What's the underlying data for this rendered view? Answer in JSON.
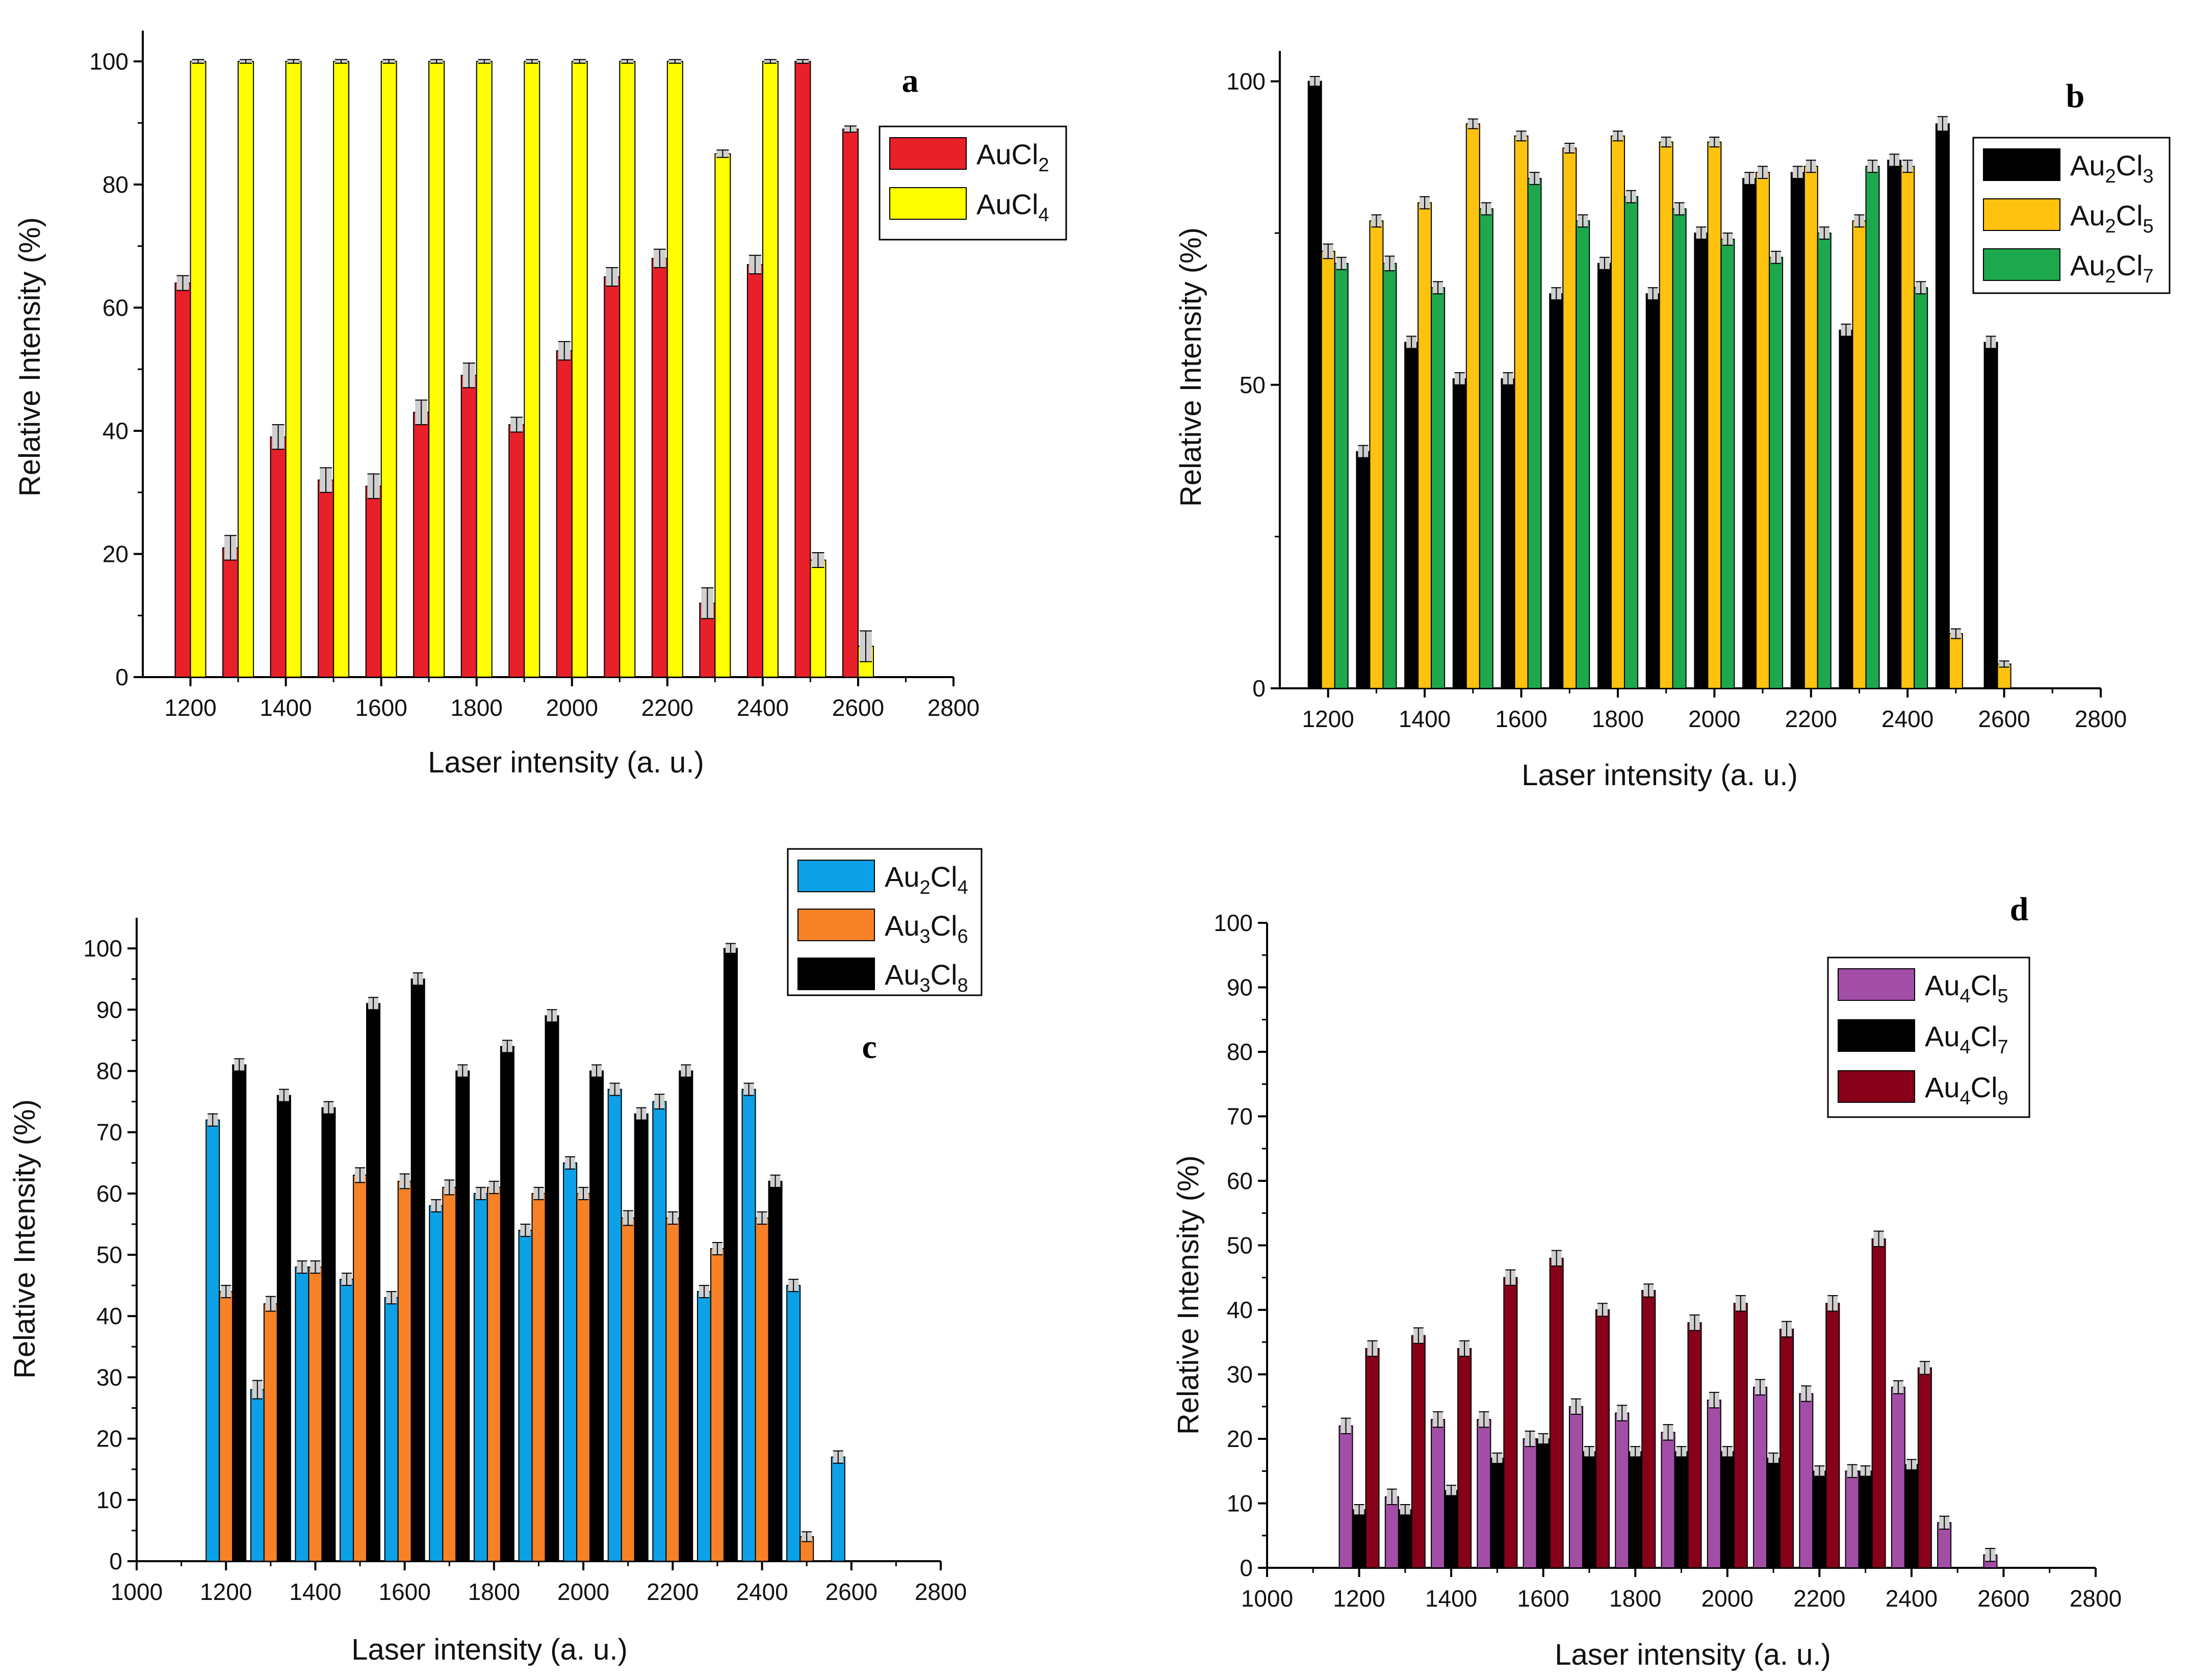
{
  "figure": {
    "panels": [
      {
        "letter": "a",
        "xlabel": "Laser intensity (a. u.)",
        "ylabel": "Relative Intensity (%)",
        "legend": [
          "AuCl2",
          "AuCl4"
        ]
      },
      {
        "letter": "b",
        "xlabel": "Laser intensity (a. u.)",
        "ylabel": "Relative Intensity (%)",
        "legend": [
          "Au2Cl3",
          "Au2Cl5",
          "Au2Cl7"
        ]
      },
      {
        "letter": "c",
        "xlabel": "Laser intensity (a. u.)",
        "ylabel": "Relative Intensity (%)",
        "legend": [
          "Au2Cl4",
          "Au3Cl6",
          "Au3Cl8"
        ]
      },
      {
        "letter": "d",
        "xlabel": "Laser intensity (a. u.)",
        "ylabel": "Relative Intensity (%)",
        "legend": [
          "Au4Cl5",
          "Au4Cl7",
          "Au4Cl9"
        ]
      }
    ]
  },
  "chart_data": [
    {
      "panel": "a",
      "type": "bar",
      "title": "",
      "xlabel": "Laser intensity (a. u.)",
      "ylabel": "Relative Intensity (%)",
      "xlim": [
        1100,
        2800
      ],
      "ylim": [
        0,
        105
      ],
      "xticks": [
        1200,
        1400,
        1600,
        1800,
        2000,
        2200,
        2400,
        2600,
        2800
      ],
      "yticks": [
        0,
        20,
        40,
        60,
        80,
        100
      ],
      "legend_position": "top-right",
      "categories": [
        1200,
        1300,
        1400,
        1500,
        1600,
        1700,
        1800,
        1900,
        2000,
        2100,
        2200,
        2300,
        2400,
        2500,
        2600
      ],
      "series": [
        {
          "name": "AuCl2",
          "color": "#e8202a",
          "values": [
            64,
            21,
            39,
            32,
            31,
            43,
            49,
            41,
            53,
            65,
            68,
            12,
            67,
            100,
            89
          ],
          "errors": [
            1.2,
            2,
            2,
            2,
            2,
            2,
            2,
            1.2,
            1.5,
            1.5,
            1.5,
            2.5,
            1.5,
            0.3,
            0.5
          ]
        },
        {
          "name": "AuCl4",
          "color": "#ffff00",
          "values": [
            100,
            100,
            100,
            100,
            100,
            100,
            100,
            100,
            100,
            100,
            100,
            85,
            100,
            19,
            5
          ],
          "errors": [
            0.3,
            0.3,
            0.3,
            0.3,
            0.3,
            0.3,
            0.3,
            0.3,
            0.3,
            0.3,
            0.3,
            0.6,
            0.3,
            1.2,
            2.5
          ]
        }
      ]
    },
    {
      "panel": "b",
      "type": "bar",
      "title": "",
      "xlabel": "Laser intensity (a. u.)",
      "ylabel": "Relative Intensity (%)",
      "xlim": [
        1100,
        2800
      ],
      "ylim": [
        0,
        105
      ],
      "xticks": [
        1200,
        1400,
        1600,
        1800,
        2000,
        2200,
        2400,
        2600,
        2800
      ],
      "yticks": [
        0,
        50,
        100
      ],
      "legend_position": "top-right",
      "categories": [
        1200,
        1300,
        1400,
        1500,
        1600,
        1700,
        1800,
        1900,
        2000,
        2100,
        2200,
        2300,
        2400,
        2500,
        2600
      ],
      "series": [
        {
          "name": "Au2Cl3",
          "color": "#000000",
          "values": [
            100,
            39,
            57,
            51,
            51,
            65,
            70,
            65,
            75,
            84,
            85,
            59,
            87,
            93,
            57
          ],
          "errors": [
            0.8,
            1,
            1,
            1,
            1,
            1,
            1,
            1,
            1,
            1,
            1,
            1,
            1,
            1.2,
            1
          ]
        },
        {
          "name": "Au2Cl5",
          "color": "#ffc20e",
          "values": [
            72,
            77,
            80,
            93,
            91,
            89,
            91,
            90,
            90,
            85,
            86,
            77,
            86,
            9,
            4
          ],
          "errors": [
            1.2,
            1,
            1,
            0.8,
            0.8,
            0.8,
            0.8,
            0.8,
            0.8,
            1,
            1,
            1,
            1,
            0.8,
            0.5
          ]
        },
        {
          "name": "Au2Cl7",
          "color": "#1ea84e",
          "values": [
            70,
            70,
            66,
            79,
            84,
            77,
            81,
            79,
            74,
            71,
            75,
            86,
            66,
            null,
            null
          ],
          "errors": [
            1,
            1.2,
            1,
            1,
            1,
            1,
            1,
            1,
            1,
            1,
            1,
            1,
            1,
            null,
            null
          ]
        }
      ]
    },
    {
      "panel": "c",
      "type": "bar",
      "title": "",
      "xlabel": "Laser intensity (a. u.)",
      "ylabel": "Relative Intensity (%)",
      "xlim": [
        1000,
        2800
      ],
      "ylim": [
        0,
        105
      ],
      "xticks": [
        1000,
        1200,
        1400,
        1600,
        1800,
        2000,
        2200,
        2400,
        2600,
        2800
      ],
      "yticks": [
        0,
        10,
        20,
        30,
        40,
        50,
        60,
        70,
        80,
        90,
        100
      ],
      "legend_position": "top-right",
      "categories": [
        1200,
        1300,
        1400,
        1500,
        1600,
        1700,
        1800,
        1900,
        2000,
        2100,
        2200,
        2300,
        2400,
        2500,
        2600
      ],
      "series": [
        {
          "name": "Au2Cl4",
          "color": "#0ca0e6",
          "values": [
            72,
            28,
            48,
            46,
            43,
            58,
            60,
            54,
            65,
            77,
            75,
            44,
            77,
            45,
            17
          ],
          "errors": [
            1,
            1.5,
            1,
            1,
            1,
            1,
            1,
            1,
            1,
            1,
            1.2,
            1,
            1,
            1,
            1
          ]
        },
        {
          "name": "Au3Cl6",
          "color": "#f68127",
          "values": [
            44,
            42,
            48,
            63,
            62,
            61,
            61,
            60,
            60,
            56,
            56,
            51,
            56,
            4,
            null
          ],
          "errors": [
            1,
            1.2,
            1,
            1.2,
            1.2,
            1.2,
            1,
            1,
            1,
            1.2,
            1,
            1,
            1,
            0.8,
            null
          ]
        },
        {
          "name": "Au3Cl8",
          "color": "#000000",
          "values": [
            81,
            76,
            74,
            91,
            95,
            80,
            84,
            89,
            80,
            73,
            80,
            100,
            62,
            null,
            null
          ],
          "errors": [
            1,
            1,
            1,
            1,
            1,
            1,
            1,
            1,
            1,
            1,
            1,
            0.8,
            1,
            null,
            null
          ]
        }
      ]
    },
    {
      "panel": "d",
      "type": "bar",
      "title": "",
      "xlabel": "Laser intensity (a. u.)",
      "ylabel": "Relative Intensity (%)",
      "xlim": [
        1000,
        2800
      ],
      "ylim": [
        0,
        100
      ],
      "xticks": [
        1000,
        1200,
        1400,
        1600,
        1800,
        2000,
        2200,
        2400,
        2600,
        2800
      ],
      "yticks": [
        0,
        10,
        20,
        30,
        40,
        50,
        60,
        70,
        80,
        90,
        100
      ],
      "legend_position": "top-right",
      "categories": [
        1200,
        1300,
        1400,
        1500,
        1600,
        1700,
        1800,
        1900,
        2000,
        2100,
        2200,
        2300,
        2400,
        2500,
        2600
      ],
      "series": [
        {
          "name": "Au4Cl5",
          "color": "#a24ea6",
          "values": [
            22,
            11,
            23,
            23,
            20,
            25,
            24,
            21,
            26,
            28,
            27,
            15,
            28,
            7,
            2
          ],
          "errors": [
            1.2,
            1.2,
            1.2,
            1.2,
            1.2,
            1.2,
            1.2,
            1.2,
            1.2,
            1.2,
            1.2,
            1,
            1,
            1,
            1
          ]
        },
        {
          "name": "Au4Cl7",
          "color": "#000000",
          "values": [
            9,
            9,
            12,
            17,
            20,
            18,
            18,
            18,
            18,
            17,
            15,
            15,
            16,
            null,
            null
          ],
          "errors": [
            0.8,
            0.8,
            0.8,
            0.8,
            0.8,
            0.8,
            0.8,
            0.8,
            0.8,
            0.8,
            0.8,
            0.8,
            0.8,
            null,
            null
          ]
        },
        {
          "name": "Au4Cl9",
          "color": "#87001a",
          "values": [
            34,
            36,
            34,
            45,
            48,
            40,
            43,
            38,
            41,
            37,
            41,
            51,
            31,
            null,
            null
          ],
          "errors": [
            1.2,
            1.2,
            1.2,
            1.2,
            1.2,
            1,
            1,
            1.2,
            1.2,
            1.2,
            1.2,
            1.2,
            1,
            null,
            null
          ]
        }
      ]
    }
  ]
}
